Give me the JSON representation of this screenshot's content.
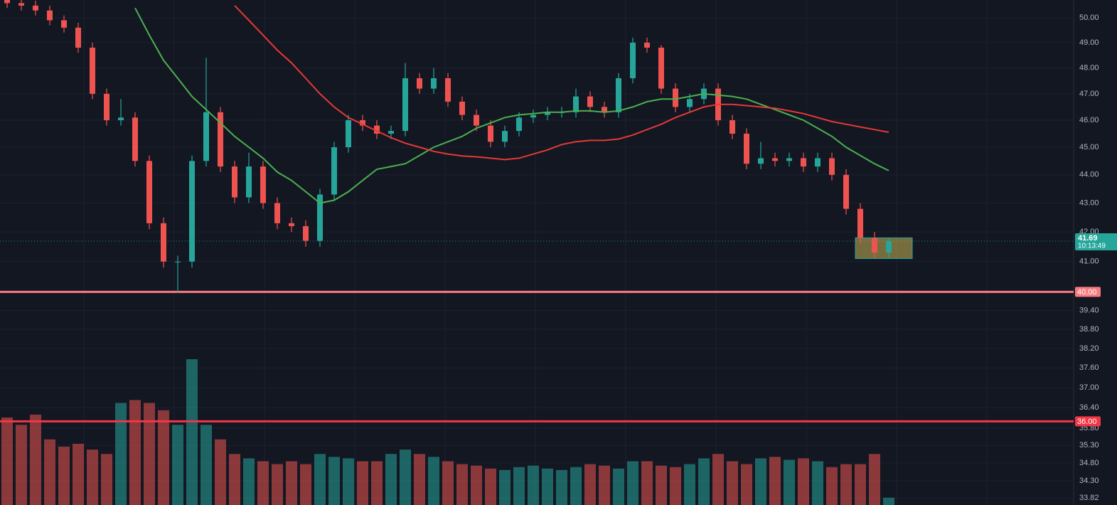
{
  "chart_data": {
    "type": "candlestick",
    "log_scale": true,
    "ylim": [
      33.63,
      50.73
    ],
    "yticks": [
      {
        "value": 50,
        "label": "50.00"
      },
      {
        "value": 49,
        "label": "49.00"
      },
      {
        "value": 48,
        "label": "48.00"
      },
      {
        "value": 47,
        "label": "47.00"
      },
      {
        "value": 46,
        "label": "46.00"
      },
      {
        "value": 45,
        "label": "45.00"
      },
      {
        "value": 44,
        "label": "44.00"
      },
      {
        "value": 43,
        "label": "43.00"
      },
      {
        "value": 42,
        "label": "42.00"
      },
      {
        "value": 41,
        "label": "41.00"
      },
      {
        "value": 39.4,
        "label": "39.40"
      },
      {
        "value": 38.8,
        "label": "38.80"
      },
      {
        "value": 38.2,
        "label": "38.20"
      },
      {
        "value": 37.6,
        "label": "37.60"
      },
      {
        "value": 37,
        "label": "37.00"
      },
      {
        "value": 36.4,
        "label": "36.40"
      },
      {
        "value": 35.8,
        "label": "35.80"
      },
      {
        "value": 35.3,
        "label": "35.30"
      },
      {
        "value": 34.8,
        "label": "34.80"
      },
      {
        "value": 34.3,
        "label": "34.30"
      },
      {
        "value": 33.82,
        "label": "33.82"
      }
    ],
    "grid": true,
    "up_color": "#26a69a",
    "down_color": "#ef5350",
    "open": [
      50.8,
      50.6,
      50.5,
      50.3,
      49.9,
      49.6,
      48.8,
      47.0,
      46.0,
      46.1,
      44.5,
      42.3,
      41.0,
      41.0,
      44.5,
      46.3,
      44.3,
      43.2,
      44.3,
      43.0,
      42.3,
      42.2,
      41.7,
      43.3,
      45.0,
      46.0,
      45.8,
      45.5,
      45.6,
      47.6,
      47.2,
      47.6,
      46.7,
      46.2,
      45.8,
      45.2,
      45.6,
      46.1,
      46.2,
      46.3,
      46.3,
      46.9,
      46.5,
      46.3,
      47.6,
      49.0,
      48.8,
      47.2,
      46.5,
      46.8,
      47.2,
      46.0,
      45.5,
      44.4,
      44.6,
      44.5,
      44.6,
      44.3,
      44.6,
      44.0,
      42.8,
      41.8,
      41.3
    ],
    "high": [
      51.0,
      50.8,
      50.7,
      50.5,
      50.1,
      49.8,
      49.0,
      47.2,
      46.8,
      46.3,
      44.7,
      42.5,
      41.2,
      44.7,
      48.4,
      46.5,
      44.5,
      44.8,
      44.5,
      43.2,
      42.5,
      42.4,
      43.5,
      45.2,
      46.2,
      46.2,
      46.0,
      45.8,
      48.2,
      47.8,
      48.0,
      47.8,
      46.9,
      46.4,
      46.0,
      45.8,
      46.3,
      46.4,
      46.5,
      46.5,
      47.2,
      47.1,
      46.7,
      47.8,
      49.2,
      49.2,
      48.9,
      47.4,
      47.0,
      47.4,
      47.4,
      46.2,
      45.7,
      45.2,
      44.8,
      44.8,
      44.8,
      44.8,
      44.8,
      44.2,
      43.0,
      42.0,
      41.8
    ],
    "low": [
      50.4,
      50.3,
      50.1,
      49.7,
      49.4,
      48.6,
      46.8,
      45.8,
      45.8,
      44.3,
      42.1,
      40.8,
      40.0,
      40.8,
      44.3,
      44.1,
      43.0,
      43.0,
      42.8,
      42.1,
      42.0,
      41.5,
      41.5,
      43.1,
      44.8,
      45.6,
      45.3,
      45.3,
      45.4,
      47.0,
      47.0,
      46.5,
      46.0,
      45.6,
      45.0,
      45.0,
      45.4,
      45.9,
      46.0,
      46.1,
      46.1,
      46.3,
      46.1,
      46.1,
      47.4,
      48.6,
      47.0,
      46.3,
      46.3,
      46.6,
      45.8,
      45.3,
      44.2,
      44.2,
      44.3,
      44.3,
      44.1,
      44.1,
      43.8,
      42.6,
      41.6,
      41.1,
      41.1
    ],
    "close": [
      50.6,
      50.5,
      50.3,
      49.9,
      49.6,
      48.8,
      47.0,
      46.0,
      46.1,
      44.5,
      42.3,
      41.0,
      41.0,
      44.5,
      46.3,
      44.3,
      43.2,
      44.3,
      43.0,
      42.3,
      42.2,
      41.7,
      43.3,
      45.0,
      46.0,
      45.8,
      45.5,
      45.6,
      47.6,
      47.2,
      47.6,
      46.7,
      46.2,
      45.8,
      45.2,
      45.6,
      46.1,
      46.2,
      46.3,
      46.3,
      46.9,
      46.5,
      46.3,
      47.6,
      49.0,
      48.8,
      47.2,
      46.5,
      46.8,
      47.2,
      46.0,
      45.5,
      44.4,
      44.6,
      44.5,
      44.6,
      44.3,
      44.6,
      44.0,
      42.8,
      41.8,
      41.3,
      41.69
    ],
    "volume": [
      60,
      55,
      62,
      45,
      40,
      42,
      38,
      35,
      70,
      72,
      70,
      65,
      55,
      100,
      55,
      45,
      35,
      32,
      30,
      28,
      30,
      28,
      35,
      33,
      32,
      30,
      30,
      35,
      38,
      35,
      33,
      30,
      28,
      27,
      25,
      24,
      26,
      27,
      25,
      24,
      26,
      28,
      27,
      25,
      30,
      30,
      27,
      26,
      28,
      32,
      35,
      30,
      28,
      32,
      33,
      31,
      32,
      30,
      26,
      28,
      28,
      35,
      5
    ],
    "series": [
      {
        "color": "#4caf50",
        "values": [
          null,
          null,
          null,
          null,
          null,
          null,
          null,
          null,
          null,
          50.4,
          49.3,
          48.3,
          47.6,
          46.9,
          46.4,
          45.9,
          45.4,
          45.0,
          44.6,
          44.1,
          43.8,
          43.4,
          43.0,
          43.1,
          43.4,
          43.8,
          44.2,
          44.3,
          44.4,
          44.7,
          45.0,
          45.2,
          45.4,
          45.7,
          45.9,
          46.1,
          46.2,
          46.25,
          46.3,
          46.3,
          46.35,
          46.35,
          46.3,
          46.35,
          46.5,
          46.7,
          46.8,
          46.8,
          46.9,
          47.0,
          46.95,
          46.9,
          46.8,
          46.6,
          46.4,
          46.2,
          46.0,
          45.7,
          45.4,
          45.0,
          44.7,
          44.4,
          44.15
        ]
      },
      {
        "color": "#e53935",
        "values": [
          null,
          null,
          null,
          null,
          null,
          null,
          null,
          null,
          null,
          null,
          null,
          null,
          null,
          null,
          null,
          null,
          50.5,
          49.9,
          49.3,
          48.7,
          48.2,
          47.6,
          47.0,
          46.5,
          46.1,
          45.85,
          45.6,
          45.35,
          45.15,
          45.0,
          44.85,
          44.75,
          44.68,
          44.65,
          44.6,
          44.55,
          44.6,
          44.75,
          44.9,
          45.1,
          45.2,
          45.25,
          45.25,
          45.3,
          45.45,
          45.65,
          45.85,
          46.1,
          46.3,
          46.5,
          46.6,
          46.6,
          46.55,
          46.5,
          46.45,
          46.35,
          46.25,
          46.1,
          45.95,
          45.85,
          45.75,
          45.65,
          45.55
        ]
      }
    ],
    "levels": [
      {
        "value": 40,
        "label": "40.00",
        "color": "#f77c80"
      },
      {
        "value": 36,
        "label": "36.00",
        "color": "#f23645"
      }
    ],
    "box": {
      "top": 41.8,
      "bottom": 41.1,
      "color": "#c9b458"
    },
    "last_price": {
      "value": 41.69,
      "label": "41.69",
      "countdown": "10:13:49",
      "color": "#26a69a"
    }
  }
}
